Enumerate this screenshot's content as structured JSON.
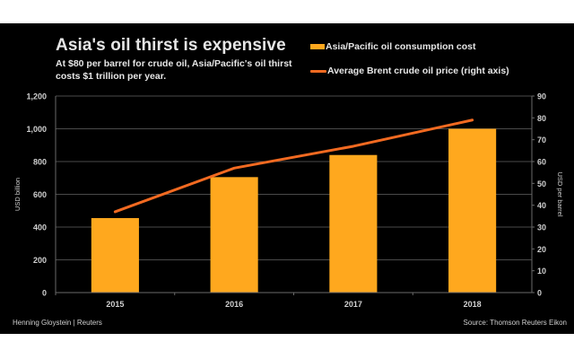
{
  "header": {
    "title": "Asia's oil thirst is expensive",
    "subtitle": "At $80 per barrel for crude oil, Asia/Pacific's oil thirst costs $1 trillion per year."
  },
  "footer": {
    "credit": "Henning Gloystein | Reuters",
    "source": "Source: Thomson Reuters Eikon"
  },
  "colors": {
    "background": "#000000",
    "bar": "#FFA81E",
    "line": "#F26A21",
    "grid": "#4a4a4a",
    "text": "#e6e6e6"
  },
  "chart_data": {
    "type": "bar+line",
    "title": "Asia's oil thirst is expensive",
    "subtitle": "At $80 per barrel for crude oil, Asia/Pacific's oil thirst costs $1 trillion per year.",
    "categories": [
      "2015",
      "2016",
      "2017",
      "2018"
    ],
    "series": [
      {
        "name": "Asia/Pacific oil consumption cost",
        "type": "bar",
        "axis": "left",
        "values": [
          455,
          705,
          840,
          1000
        ]
      },
      {
        "name": "Average Brent crude oil price (right axis)",
        "type": "line",
        "axis": "right",
        "values": [
          37,
          57,
          67,
          79
        ]
      }
    ],
    "ylabel": "USD billion",
    "y2label": "USD per barrel",
    "xlabel": "",
    "ylim": [
      0,
      1200
    ],
    "y2lim": [
      0,
      90
    ],
    "yticks": [
      "0",
      "200",
      "400",
      "600",
      "800",
      "1,000",
      "1,200"
    ],
    "y2ticks": [
      "0",
      "10",
      "20",
      "30",
      "40",
      "50",
      "60",
      "70",
      "80",
      "90"
    ],
    "grid": true,
    "legend": "top-right"
  }
}
